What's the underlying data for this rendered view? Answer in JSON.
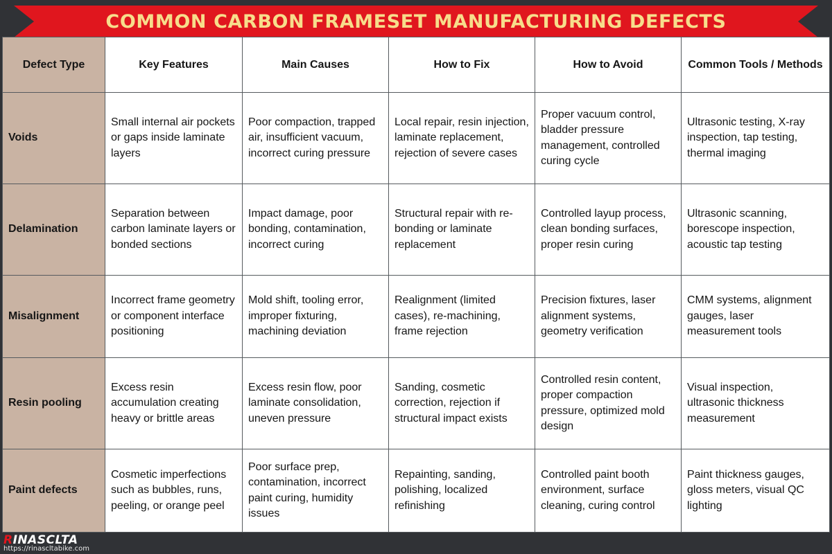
{
  "title": "COMMON CARBON FRAMESET MANUFACTURING DEFECTS",
  "columns": [
    "Defect Type",
    "Key Features",
    "Main Causes",
    "How to Fix",
    "How to Avoid",
    "Common Tools / Methods"
  ],
  "rows": [
    {
      "defect": "Voids",
      "features": "Small internal air pockets or gaps inside laminate layers",
      "causes": "Poor compaction, trapped air, insufficient vacuum, incorrect curing pressure",
      "fix": "Local repair, resin injection, laminate replacement, rejection of severe cases",
      "avoid": "Proper vacuum control, bladder pressure management, controlled curing cycle",
      "tools": "Ultrasonic testing, X-ray inspection, tap testing, thermal imaging"
    },
    {
      "defect": "Delamination",
      "features": "Separation between carbon laminate layers or bonded sections",
      "causes": "Impact damage, poor bonding, contamination, incorrect curing",
      "fix": "Structural repair with re-bonding or laminate replacement",
      "avoid": "Controlled layup process, clean bonding surfaces, proper resin curing",
      "tools": "Ultrasonic scanning, borescope inspection, acoustic tap testing"
    },
    {
      "defect": "Misalignment",
      "features": "Incorrect frame geometry or component interface positioning",
      "causes": "Mold shift, tooling error, improper fixturing, machining deviation",
      "fix": "Realignment (limited cases), re-machining, frame rejection",
      "avoid": "Precision fixtures, laser alignment systems, geometry verification",
      "tools": "CMM systems, alignment gauges, laser measurement tools"
    },
    {
      "defect": "Resin pooling",
      "features": "Excess resin accumulation creating heavy or brittle areas",
      "causes": "Excess resin flow, poor laminate consolidation, uneven pressure",
      "fix": "Sanding, cosmetic correction, rejection if structural impact exists",
      "avoid": "Controlled resin content, proper compaction pressure, optimized mold design",
      "tools": "Visual inspection, ultrasonic thickness measurement"
    },
    {
      "defect": "Paint defects",
      "features": "Cosmetic imperfections such as bubbles, runs, peeling, or orange peel",
      "causes": "Poor surface prep, contamination, incorrect paint curing, humidity issues",
      "fix": "Repainting, sanding, polishing, localized refinishing",
      "avoid": "Controlled paint booth environment, surface cleaning, curing control",
      "tools": "Paint thickness gauges, gloss meters, visual QC lighting"
    }
  ],
  "footer": {
    "brand_initial": "R",
    "brand_rest": "INASCLTA",
    "url": "https://rinascltabike.com"
  },
  "colors": {
    "banner": "#e0161e",
    "title_text": "#f7dd8b",
    "row_header_bg": "#c9b3a3",
    "background": "#303236"
  }
}
